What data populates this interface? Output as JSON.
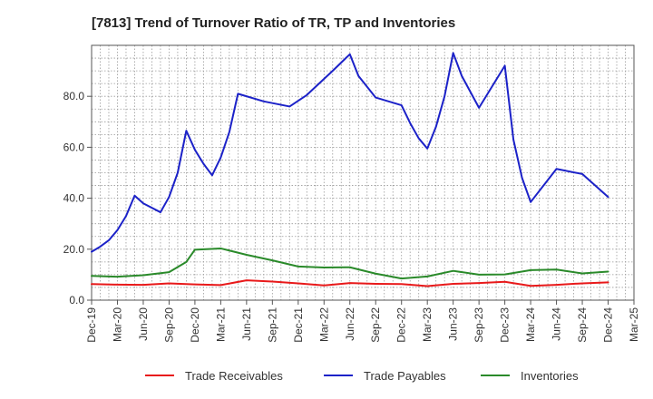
{
  "chart_data": {
    "type": "line",
    "title": "[7813]  Trend of Turnover Ratio of TR, TP and Inventories",
    "xlabel": "",
    "ylabel": "",
    "ylim": [
      0,
      100
    ],
    "yticks": [
      "0.0",
      "20.0",
      "40.0",
      "60.0",
      "80.0"
    ],
    "ytick_values": [
      0,
      20,
      40,
      60,
      80
    ],
    "x_tick_labels": [
      "Dec-19",
      "Mar-20",
      "Jun-20",
      "Sep-20",
      "Dec-20",
      "Mar-21",
      "Jun-21",
      "Sep-21",
      "Dec-21",
      "Mar-22",
      "Jun-22",
      "Sep-22",
      "Dec-22",
      "Mar-23",
      "Jun-23",
      "Sep-23",
      "Dec-23",
      "Mar-24",
      "Jun-24",
      "Sep-24",
      "Dec-24",
      "Mar-25"
    ],
    "x": [
      "Dec-19",
      "Jan-20",
      "Feb-20",
      "Mar-20",
      "Apr-20",
      "May-20",
      "Jun-20",
      "Jul-20",
      "Aug-20",
      "Sep-20",
      "Oct-20",
      "Nov-20",
      "Dec-20",
      "Jan-21",
      "Feb-21",
      "Mar-21",
      "Apr-21",
      "May-21",
      "Jun-21",
      "Jul-21",
      "Aug-21",
      "Sep-21",
      "Oct-21",
      "Nov-21",
      "Dec-21",
      "Jan-22",
      "Feb-22",
      "Mar-22",
      "Apr-22",
      "May-22",
      "Jun-22",
      "Jul-22",
      "Aug-22",
      "Sep-22",
      "Oct-22",
      "Nov-22",
      "Dec-22",
      "Jan-23",
      "Feb-23",
      "Mar-23",
      "Apr-23",
      "May-23",
      "Jun-23",
      "Jul-23",
      "Aug-23",
      "Sep-23",
      "Oct-23",
      "Nov-23",
      "Dec-23",
      "Jan-24",
      "Feb-24",
      "Mar-24",
      "Apr-24",
      "May-24",
      "Jun-24",
      "Jul-24",
      "Aug-24",
      "Sep-24",
      "Oct-24",
      "Nov-24",
      "Dec-24"
    ],
    "grid": true,
    "legend_position": "bottom",
    "series": [
      {
        "name": "Trade Receivables",
        "color": "#e8191a",
        "values": [
          6.3,
          null,
          null,
          6.1,
          null,
          null,
          6.0,
          null,
          null,
          6.6,
          null,
          null,
          6.2,
          null,
          null,
          5.9,
          null,
          null,
          7.8,
          null,
          null,
          7.3,
          null,
          null,
          6.6,
          null,
          null,
          5.8,
          null,
          null,
          6.7,
          null,
          null,
          6.4,
          null,
          null,
          6.3,
          null,
          null,
          5.5,
          null,
          null,
          6.4,
          null,
          null,
          6.7,
          null,
          null,
          7.2,
          null,
          null,
          5.6,
          null,
          null,
          6.0,
          null,
          null,
          6.6,
          null,
          null,
          7.0
        ]
      },
      {
        "name": "Trade Payables",
        "color": "#1c22c8",
        "values": [
          19.0,
          21.0,
          23.5,
          27.5,
          33.0,
          41.0,
          38.0,
          null,
          34.5,
          40.5,
          50.0,
          66.5,
          59.0,
          53.5,
          49.0,
          56.0,
          66.0,
          81.0,
          null,
          null,
          78.0,
          null,
          null,
          76.0,
          null,
          80.5,
          null,
          null,
          90.0,
          null,
          96.5,
          88.0,
          null,
          79.5,
          null,
          null,
          76.5,
          69.5,
          63.5,
          59.5,
          68.0,
          80.0,
          97.0,
          88.0,
          null,
          75.5,
          null,
          null,
          92.0,
          63.0,
          48.0,
          38.5,
          null,
          null,
          51.5,
          null,
          null,
          49.5,
          null,
          null,
          40.5
        ]
      },
      {
        "name": "Inventories",
        "color": "#2a8a2a",
        "values": [
          9.5,
          null,
          null,
          9.2,
          null,
          null,
          9.8,
          null,
          null,
          11.0,
          null,
          15.0,
          19.8,
          null,
          null,
          20.3,
          null,
          null,
          17.8,
          null,
          null,
          15.6,
          null,
          null,
          13.2,
          null,
          null,
          12.8,
          null,
          null,
          12.9,
          null,
          null,
          10.4,
          null,
          null,
          8.5,
          null,
          null,
          9.3,
          null,
          null,
          11.5,
          null,
          null,
          10.0,
          null,
          null,
          10.1,
          null,
          null,
          11.8,
          null,
          null,
          12.0,
          null,
          null,
          10.5,
          null,
          null,
          11.2
        ]
      }
    ]
  }
}
